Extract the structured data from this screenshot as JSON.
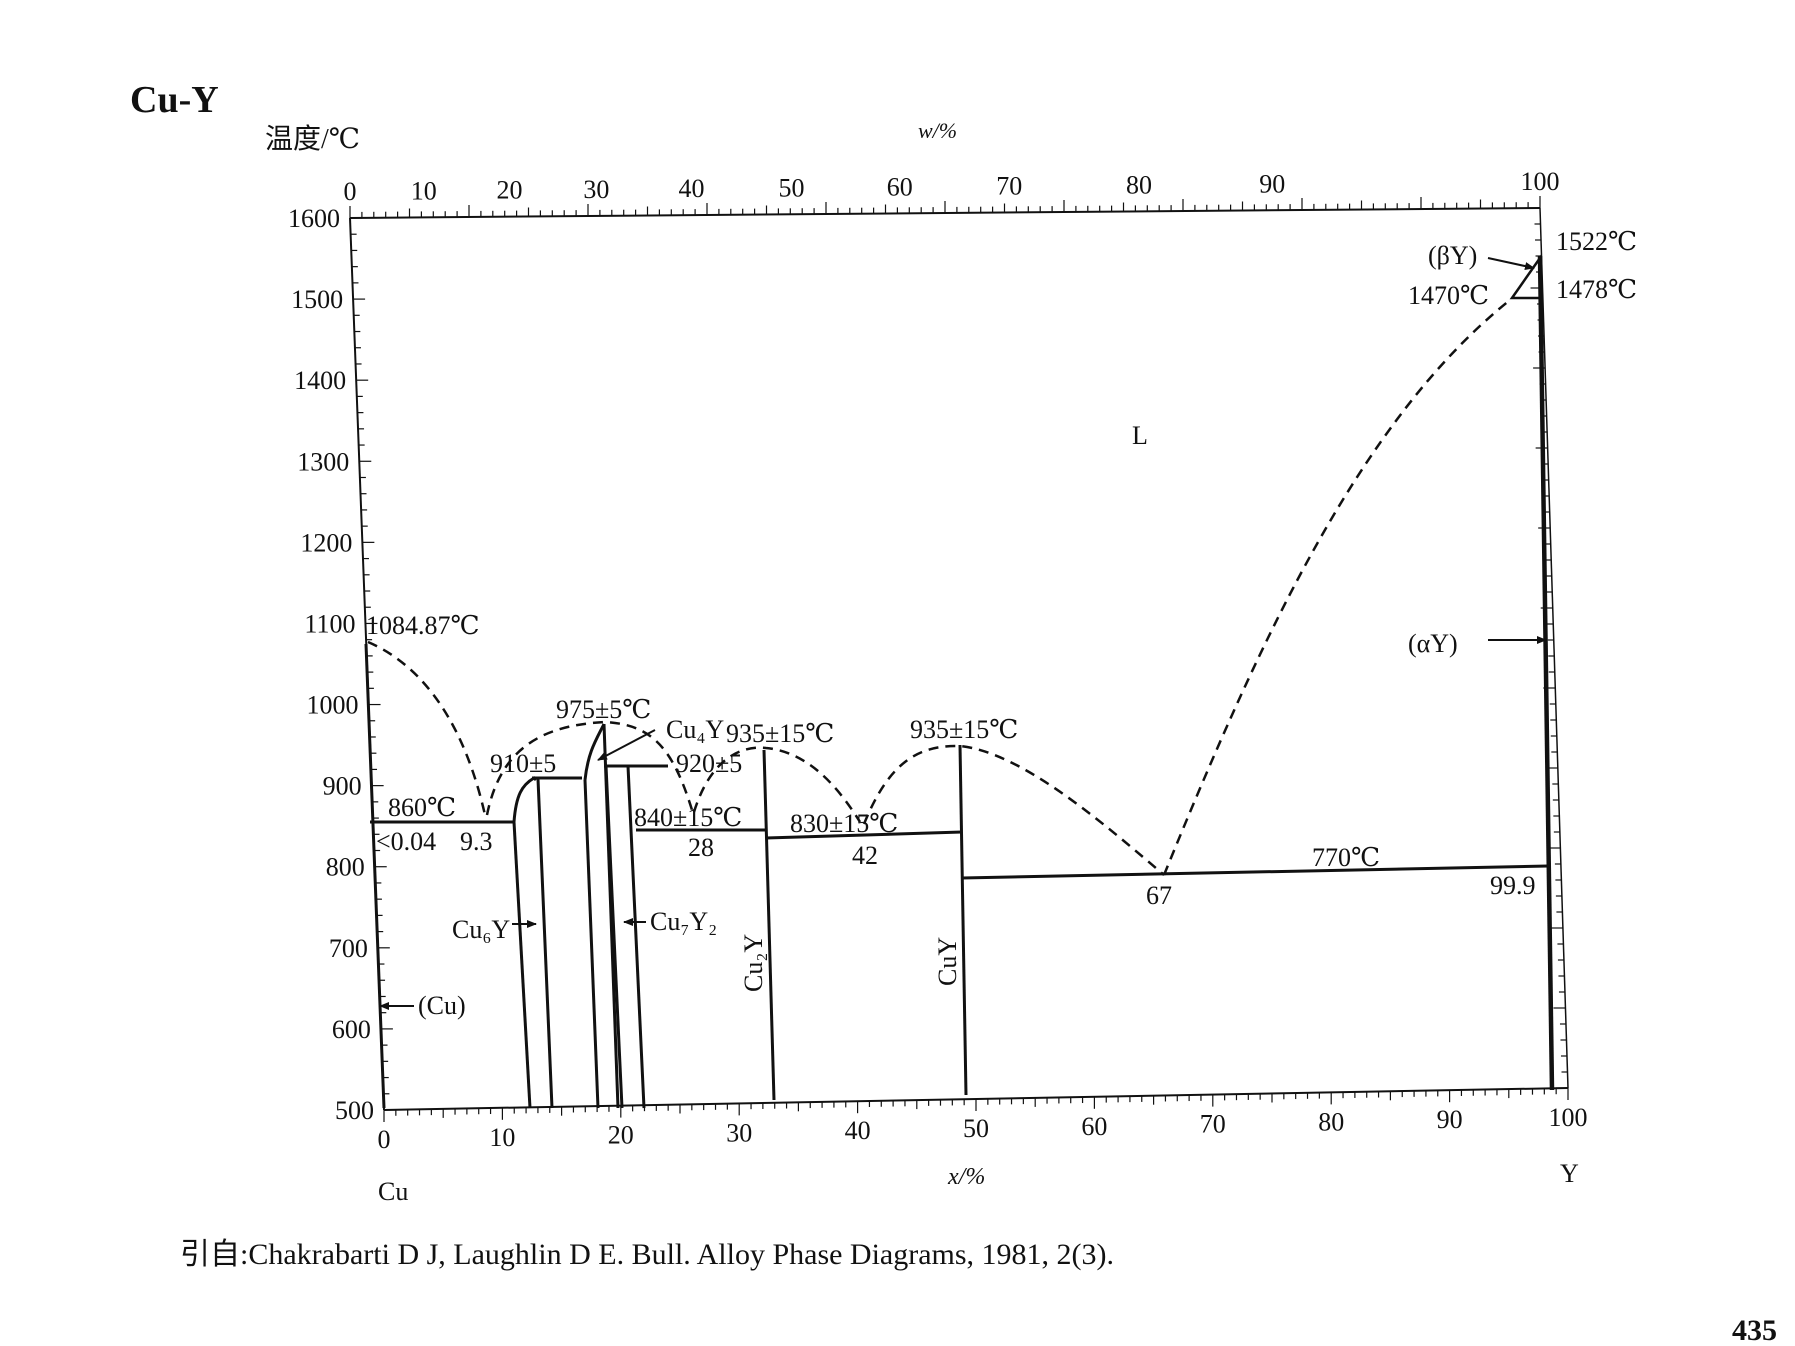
{
  "title": "Cu-Y",
  "page_number": "435",
  "citation": "引自:Chakrabarti D J, Laughlin D E. Bull.  Alloy Phase Diagrams, 1981, 2(3).",
  "axes": {
    "temperature_label": "温度/℃",
    "top_label": "w/%",
    "bottom_label": "x/%",
    "left_element": "Cu",
    "right_element": "Y",
    "top_ticks": [
      "0",
      "10",
      "20",
      "30",
      "40",
      "50",
      "60",
      "70",
      "80",
      "90",
      "100"
    ],
    "bottom_ticks": [
      "0",
      "10",
      "20",
      "30",
      "40",
      "50",
      "60",
      "70",
      "80",
      "90",
      "100"
    ],
    "temperature_ticks": [
      "1600",
      "1500",
      "1400",
      "1300",
      "1200",
      "1100",
      "1000",
      "900",
      "800",
      "700",
      "600",
      "500"
    ]
  },
  "labels": {
    "liquid": "L",
    "beta_y": "(βY)",
    "alpha_y": "(αY)",
    "cu_phase": "(Cu)",
    "t_1522": "1522℃",
    "t_1478": "1478℃",
    "t_1470": "1470℃",
    "t_1084": "1084.87℃",
    "t_975": "975±5℃",
    "t_935a": "935±15℃",
    "t_935b": "935±15℃",
    "t_910": "910±5",
    "t_920": "920±5",
    "t_860": "860℃",
    "t_840": "840±15℃",
    "t_830": "830±15℃",
    "t_770": "770℃",
    "c_004": "<0.04",
    "c_93": "9.3",
    "c_28": "28",
    "c_42": "42",
    "c_67": "67",
    "c_999": "99.9",
    "cu6y": "Cu₆Y",
    "cu4y": "Cu₄Y",
    "cu7y2": "Cu₇Y₂",
    "cu2y": "Cu₂Y",
    "cuy": "CuY"
  }
}
